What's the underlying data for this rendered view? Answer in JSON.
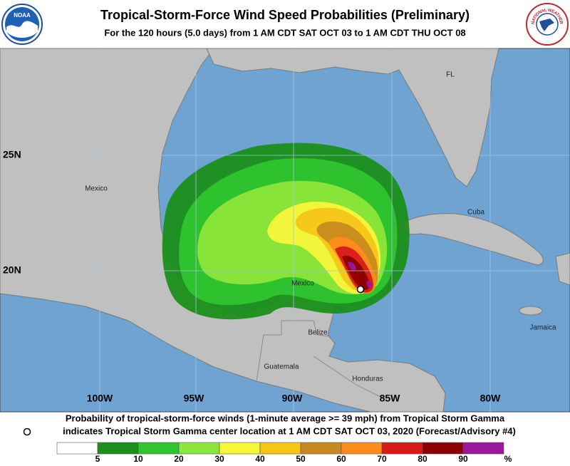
{
  "header": {
    "title": "Tropical-Storm-Force Wind Speed Probabilities (Preliminary)",
    "subtitle": "For the 120 hours (5.0 days) from 1 AM CDT SAT OCT 03 to 1 AM CDT THU OCT 08"
  },
  "logos": {
    "noaa": "NOAA",
    "nws": "NATIONAL WEATHER SERVICE"
  },
  "map": {
    "latitude_labels": [
      "25N",
      "20N"
    ],
    "longitude_labels": [
      "100W",
      "95W",
      "90W",
      "85W",
      "80W"
    ],
    "places": [
      "FL",
      "Mexico",
      "Cuba",
      "Mexico",
      "Belize",
      "Guatemala",
      "Honduras",
      "Jamaica"
    ]
  },
  "footer": {
    "line1": "Probability of tropical-storm-force winds (1-minute average >= 39 mph) from Tropical Storm Gamma",
    "line2": "indicates Tropical Storm Gamma center location at 1 AM CDT SAT OCT 03, 2020 (Forecast/Advisory #4)"
  },
  "legend": {
    "colors": [
      "#ffffff",
      "#1a8f1a",
      "#2fc52f",
      "#8ee63a",
      "#f7f73a",
      "#f5c518",
      "#c88a1e",
      "#ff8c1a",
      "#d81a1a",
      "#8c0000",
      "#9a169a"
    ],
    "labels": [
      5,
      10,
      20,
      30,
      40,
      50,
      60,
      70,
      80,
      90
    ],
    "unit": "%"
  }
}
